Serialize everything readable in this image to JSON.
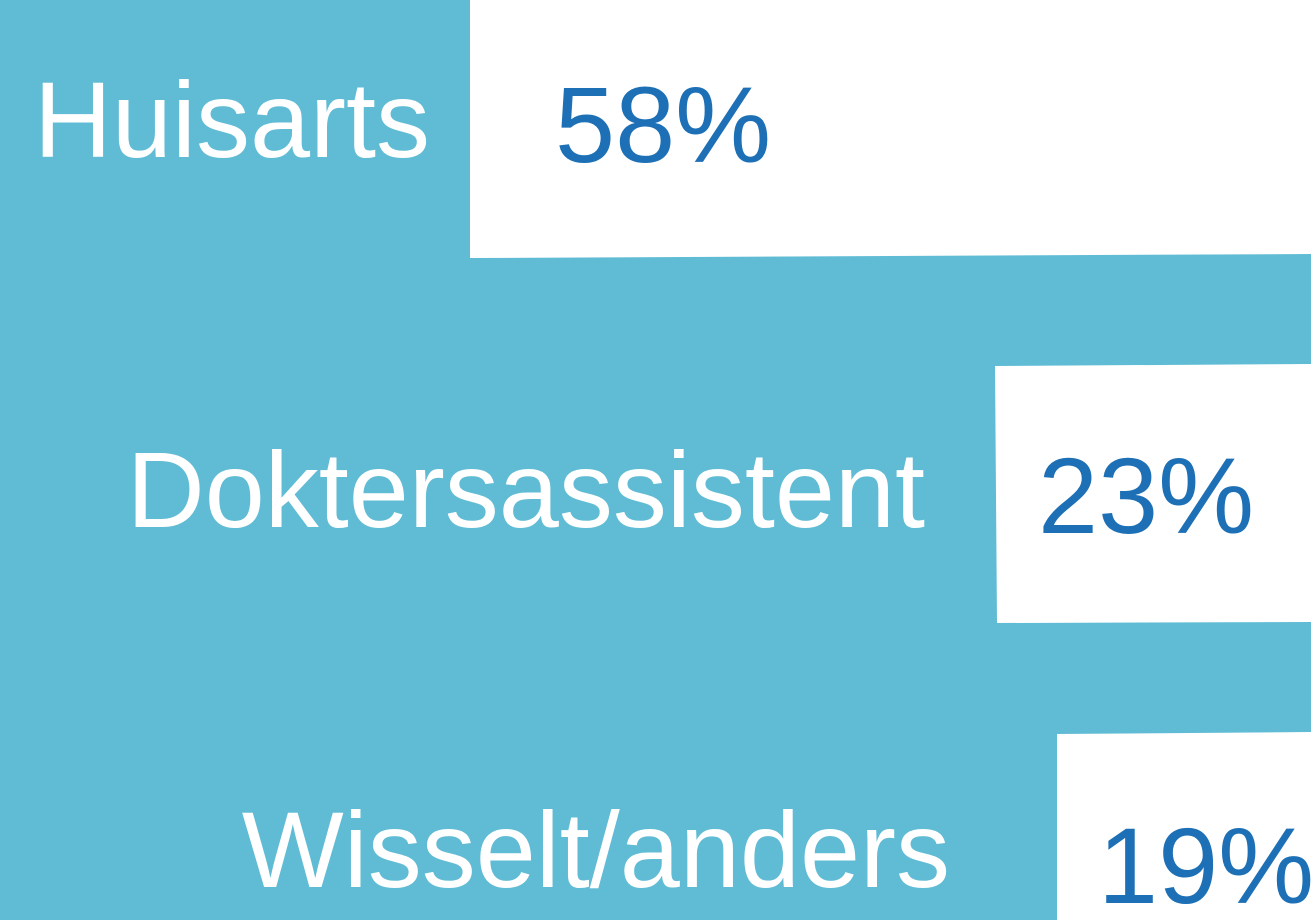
{
  "rows": [
    {
      "label": "Huisarts",
      "value": "58%"
    },
    {
      "label": "Doktersassistent",
      "value": "23%"
    },
    {
      "label": "Wisselt/anders",
      "value": "19%"
    }
  ]
}
